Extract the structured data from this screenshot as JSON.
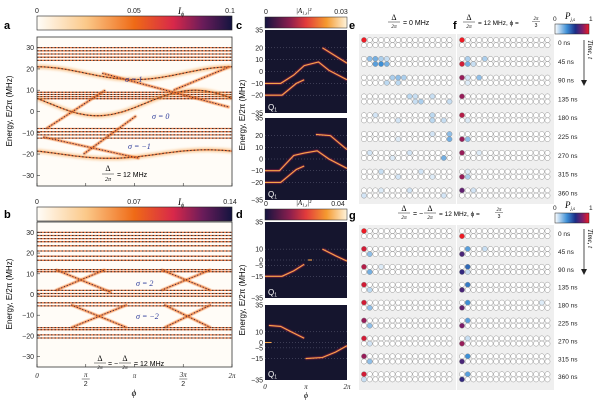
{
  "chart_data": [
    {
      "panel": "a",
      "type": "heatmap",
      "colorbar": {
        "label": "I_φ",
        "ticks": [
          "0",
          "0.05",
          "0.1"
        ],
        "range": [
          0,
          0.1
        ],
        "colormap": "white-orange-red-navy"
      },
      "xlabel": "",
      "ylabel": "Energy, E/2π (MHz)",
      "ylim": [
        -35,
        35
      ],
      "xlim": [
        0,
        6.2832
      ],
      "yticks": [
        -30,
        -20,
        -10,
        0,
        10,
        20,
        30
      ],
      "annotations": [
        {
          "text": "σ = 1",
          "x": 4.0,
          "y": 15
        },
        {
          "text": "σ = 0",
          "x": 4.6,
          "y": -1
        },
        {
          "text": "σ = −1",
          "x": 3.9,
          "y": -15
        },
        {
          "text": "Δ/2π = 12 MHz",
          "x": 3.2,
          "y": -28
        }
      ],
      "bands": [
        {
          "kind": "flat",
          "y": [
            30,
            28.5,
            27,
            25.5,
            24
          ]
        },
        {
          "kind": "cos",
          "center": 18,
          "amp": 3,
          "phase": 0
        },
        {
          "kind": "flat",
          "y": [
            9,
            8,
            7,
            6
          ]
        },
        {
          "kind": "cos",
          "center": 4,
          "amp": 6,
          "phase": 1.2
        },
        {
          "kind": "flat",
          "y": [
            -8,
            -9.5,
            -11,
            -12.5
          ]
        },
        {
          "kind": "cos",
          "center": -20,
          "amp": 2,
          "phase": 0.8
        }
      ],
      "crossings": [
        {
          "from": [
            0.3,
            -8
          ],
          "to": [
            2.2,
            10
          ]
        },
        {
          "from": [
            2.1,
            18
          ],
          "to": [
            6.2,
            2
          ]
        },
        {
          "from": [
            4.4,
            10
          ],
          "to": [
            6.2,
            21
          ]
        },
        {
          "from": [
            0.2,
            -12
          ],
          "to": [
            3.3,
            -22
          ]
        },
        {
          "from": [
            1.5,
            -20
          ],
          "to": [
            3.2,
            -2
          ]
        }
      ]
    },
    {
      "panel": "b",
      "type": "heatmap",
      "colorbar": {
        "label": "I_φ",
        "ticks": [
          "0",
          "0.07",
          "0.14"
        ],
        "range": [
          0,
          0.14
        ],
        "colormap": "white-orange-red-navy"
      },
      "xlabel": "φ",
      "ylabel": "Energy, E/2π (MHz)",
      "ylim": [
        -35,
        35
      ],
      "xlim": [
        0,
        6.2832
      ],
      "xticks": [
        "0",
        "π/2",
        "π",
        "3π/2",
        "2π"
      ],
      "yticks": [
        -30,
        -20,
        -10,
        0,
        10,
        20,
        30
      ],
      "annotations": [
        {
          "text": "σ = 2",
          "x": 3.5,
          "y": 6
        },
        {
          "text": "σ = −2",
          "x": 3.5,
          "y": -10
        },
        {
          "text": "Δ/2π = −Δ/2π = 12 MHz",
          "x": 3.0,
          "y": -28
        }
      ],
      "bands": [
        {
          "kind": "flat",
          "y": [
            30,
            28.5,
            27,
            25.5,
            23.5,
            21,
            18.5,
            16.5
          ]
        },
        {
          "kind": "flat",
          "y": [
            12,
            11
          ]
        },
        {
          "kind": "flat",
          "y": [
            2,
            0.5,
            -0.8,
            -4,
            -5.5
          ]
        },
        {
          "kind": "flat",
          "y": [
            -16,
            -17,
            -19.5,
            -21
          ]
        }
      ],
      "crossings": [
        {
          "from": [
            0.6,
            2
          ],
          "to": [
            2.2,
            12
          ]
        },
        {
          "from": [
            0.6,
            12
          ],
          "to": [
            2.4,
            1
          ]
        },
        {
          "from": [
            4.0,
            12
          ],
          "to": [
            5.6,
            2
          ]
        },
        {
          "from": [
            4.0,
            2
          ],
          "to": [
            5.6,
            12
          ]
        },
        {
          "from": [
            1.1,
            -5
          ],
          "to": [
            2.9,
            -16
          ]
        },
        {
          "from": [
            1.1,
            -16
          ],
          "to": [
            2.9,
            -5
          ]
        },
        {
          "from": [
            4.1,
            -5
          ],
          "to": [
            5.6,
            -16
          ]
        },
        {
          "from": [
            4.1,
            -16
          ],
          "to": [
            5.6,
            -5
          ]
        }
      ]
    },
    {
      "panel": "c",
      "type": "heatmap",
      "colorbar": {
        "label": "|A_1,s|²",
        "ticks": [
          "0",
          "0.03"
        ],
        "range": [
          0,
          0.03
        ],
        "colormap": "navy-red-orange-white"
      },
      "ylabel": "Energy, E/2π (MHz)",
      "subplots": [
        {
          "label": "Q1",
          "yticks": [
            35,
            20,
            10,
            0,
            -10,
            -20,
            -35
          ],
          "ylim": [
            -35,
            35
          ],
          "curves": [
            [
              [
                0,
                -10
              ],
              [
                1.2,
                -10
              ],
              [
                2.2,
                -3
              ],
              [
                3.0,
                5
              ],
              [
                4.1,
                8
              ],
              [
                4.9,
                1
              ],
              [
                6.28,
                -7
              ]
            ],
            [
              [
                0,
                -20
              ],
              [
                1.3,
                -20
              ],
              [
                2.4,
                -10
              ],
              [
                3.0,
                -7
              ]
            ],
            [
              [
                4.4,
                20
              ],
              [
                6.28,
                7
              ]
            ]
          ]
        },
        {
          "label": "Q1",
          "yticks": [
            35,
            20,
            10,
            0,
            -10,
            -20,
            -35
          ],
          "ylim": [
            -35,
            35
          ],
          "curves": [
            [
              [
                0,
                -10
              ],
              [
                1.1,
                -10
              ],
              [
                2.2,
                3
              ],
              [
                3.0,
                5
              ],
              [
                4.0,
                7
              ],
              [
                4.9,
                0
              ],
              [
                6.28,
                -8
              ]
            ],
            [
              [
                0,
                -20
              ],
              [
                1.2,
                -20
              ],
              [
                2.4,
                -9
              ],
              [
                3.0,
                -6
              ]
            ],
            [
              [
                3.9,
                21
              ],
              [
                5.0,
                20
              ],
              [
                6.28,
                8
              ]
            ]
          ]
        }
      ]
    },
    {
      "panel": "d",
      "type": "heatmap",
      "colorbar": {
        "label": "|A_1,s|²",
        "ticks": [
          "0",
          "0.04"
        ],
        "range": [
          0,
          0.04
        ],
        "colormap": "navy-red-orange-white"
      },
      "xlabel": "φ",
      "xticks": [
        "0",
        "π",
        "2π"
      ],
      "ylabel": "Energy, E/2π (MHz)",
      "subplots": [
        {
          "label": "Q1",
          "yticks": [
            35,
            10,
            0,
            -5,
            -15,
            -35
          ],
          "ylim": [
            -35,
            35
          ],
          "curves": [
            [
              [
                0,
                -15
              ],
              [
                1.3,
                -15
              ],
              [
                2.2,
                -10
              ],
              [
                3.0,
                -4
              ]
            ],
            [
              [
                3.3,
                0
              ],
              [
                3.6,
                0
              ]
            ],
            [
              [
                4.4,
                10
              ],
              [
                5.4,
                4
              ],
              [
                6.28,
                -1
              ]
            ]
          ]
        },
        {
          "label": "Q1",
          "yticks": [
            35,
            10,
            0,
            -5,
            -15,
            -35
          ],
          "ylim": [
            -35,
            35
          ],
          "curves": [
            [
              [
                0,
                0
              ],
              [
                0.5,
                0
              ]
            ],
            [
              [
                0.3,
                16
              ],
              [
                1.2,
                15
              ],
              [
                2.0,
                10
              ],
              [
                3.0,
                4
              ]
            ],
            [
              [
                3.1,
                -15
              ],
              [
                4.4,
                -14
              ],
              [
                5.4,
                -9
              ],
              [
                6.28,
                -3
              ]
            ]
          ]
        }
      ]
    },
    {
      "panel": "e",
      "type": "table",
      "title": "Δ/2π = 0 MHz",
      "sites_per_leg": 16,
      "times_ns": [
        0,
        45,
        90,
        135,
        180,
        225,
        270,
        315,
        360
      ],
      "snapshots": [
        {
          "t": 0,
          "top": {
            "0": 1.0
          },
          "bot": {}
        },
        {
          "t": 45,
          "top": {
            "1": 0.2,
            "2": 0.25,
            "3": 0.15,
            "4": 0.1
          },
          "bot": {
            "2": 0.3,
            "3": 0.35,
            "4": 0.25
          }
        },
        {
          "t": 90,
          "top": {
            "5": 0.15,
            "6": 0.2,
            "7": 0.15
          },
          "bot": {
            "4": 0.12,
            "6": 0.12
          }
        },
        {
          "t": 135,
          "top": {
            "8": 0.12,
            "9": 0.1,
            "12": 0.1
          },
          "bot": {
            "9": 0.1,
            "10": 0.15,
            "15": 0.1
          }
        },
        {
          "t": 180,
          "top": {
            "2": 0.08,
            "12": 0.12
          },
          "bot": {
            "6": 0.08,
            "12": 0.12,
            "14": 0.1
          }
        },
        {
          "t": 225,
          "top": {
            "15": 0.2,
            "12": 0.08
          },
          "bot": {
            "15": 0.25,
            "6": 0.06
          }
        },
        {
          "t": 270,
          "top": {
            "1": 0.08,
            "8": 0.08
          },
          "bot": {
            "14": 0.25,
            "5": 0.06
          }
        },
        {
          "t": 315,
          "top": {
            "3": 0.1,
            "10": 0.08
          },
          "bot": {
            "6": 0.08,
            "12": 0.06
          }
        },
        {
          "t": 360,
          "top": {
            "3": 0.06,
            "8": 0.08
          },
          "bot": {
            "0": 0.08,
            "14": 0.08
          }
        }
      ]
    },
    {
      "panel": "f",
      "type": "table",
      "title": "Δ/2π = 12 MHz, φ = 2π/3",
      "sites_per_leg": 16,
      "times_ns": [
        0,
        45,
        90,
        135,
        180,
        225,
        270,
        315,
        360
      ],
      "snapshots": [
        {
          "t": 0,
          "top": {
            "0": 1.0
          },
          "bot": {}
        },
        {
          "t": 45,
          "top": {
            "1": 0.15,
            "4": 0.15
          },
          "bot": {
            "0": 0.95,
            "1": 0.25,
            "2": 0.1
          }
        },
        {
          "t": 90,
          "top": {
            "0": 0.85,
            "1": 0.08,
            "3": 0.2
          },
          "bot": {
            "1": 0.06
          }
        },
        {
          "t": 135,
          "top": {
            "0": 0.85
          },
          "bot": {}
        },
        {
          "t": 180,
          "top": {
            "0": 0.9
          },
          "bot": {
            "1": 0.06
          }
        },
        {
          "t": 225,
          "top": {},
          "bot": {
            "0": 0.85,
            "1": 0.2
          }
        },
        {
          "t": 270,
          "top": {
            "0": 0.85,
            "3": 0.06
          },
          "bot": {}
        },
        {
          "t": 315,
          "top": {
            "1": 0.06
          },
          "bot": {
            "0": 0.85,
            "1": 0.15
          }
        },
        {
          "t": 360,
          "top": {
            "0": 0.75,
            "2": 0.08
          },
          "bot": {}
        }
      ]
    },
    {
      "panel": "g",
      "type": "table",
      "title": "Δ/2π = −Δ/2π = 12 MHz, φ = 2π/3",
      "sites_per_leg": 16,
      "times_ns": [
        0,
        45,
        90,
        135,
        180,
        225,
        270,
        315,
        360
      ],
      "left_snapshots": [
        {
          "t": 0,
          "top": {
            "0": 1.0
          },
          "bot": {}
        },
        {
          "t": 45,
          "top": {
            "0": 0.95
          },
          "bot": {
            "1": 0.2
          }
        },
        {
          "t": 90,
          "top": {
            "0": 0.9,
            "3": 0.06
          },
          "bot": {
            "1": 0.25
          }
        },
        {
          "t": 135,
          "top": {
            "0": 0.95
          },
          "bot": {
            "1": 0.12
          }
        },
        {
          "t": 180,
          "top": {
            "0": 0.95
          },
          "bot": {
            "1": 0.2
          }
        },
        {
          "t": 225,
          "top": {
            "0": 0.85
          },
          "bot": {
            "1": 0.2
          }
        },
        {
          "t": 270,
          "top": {
            "0": 0.95
          },
          "bot": {
            "1": 0.08
          }
        },
        {
          "t": 315,
          "top": {
            "0": 0.85
          },
          "bot": {
            "1": 0.2
          }
        },
        {
          "t": 360,
          "top": {
            "0": 0.95
          },
          "bot": {
            "0": 0.1
          }
        }
      ],
      "right_snapshots": [
        {
          "t": 0,
          "top": {},
          "bot": {
            "0": 1.0
          }
        },
        {
          "t": 45,
          "top": {
            "1": 0.3,
            "4": 0.1
          },
          "bot": {
            "0": 0.7
          }
        },
        {
          "t": 90,
          "top": {
            "1": 0.45
          },
          "bot": {
            "0": 0.65,
            "1": 0.1
          }
        },
        {
          "t": 135,
          "top": {
            "1": 0.4
          },
          "bot": {
            "0": 0.7
          }
        },
        {
          "t": 180,
          "top": {
            "1": 0.35,
            "14": 0.06
          },
          "bot": {
            "0": 0.75
          }
        },
        {
          "t": 225,
          "top": {
            "1": 0.3
          },
          "bot": {
            "0": 0.8
          }
        },
        {
          "t": 270,
          "top": {
            "1": 0.1
          },
          "bot": {
            "0": 0.85
          }
        },
        {
          "t": 315,
          "top": {
            "1": 0.35
          },
          "bot": {
            "0": 0.7
          }
        },
        {
          "t": 360,
          "top": {
            "1": 0.3
          },
          "bot": {
            "0": 0.65
          }
        }
      ]
    }
  ],
  "labels": {
    "panel_a": "a",
    "panel_b": "b",
    "panel_c": "c",
    "panel_d": "d",
    "panel_e": "e",
    "panel_f": "f",
    "panel_g": "g",
    "cbar_a_label": "I",
    "cbar_a_sub": "ϕ",
    "cbar_b_label": "I",
    "cbar_b_sub": "ϕ",
    "cbar_cd_label": "|A",
    "cbar_cd_sub": "1,s",
    "cbar_cd_sup": "|²",
    "ylabel_energy": "Energy, E/2π (MHz)",
    "xlabel_phi": "ϕ",
    "q1": "Q",
    "q1_sub": "1",
    "e_title_delta": "Δ",
    "e_title_2pi": "2π",
    "e_title_rest": "= 0 MHz",
    "f_title_rest": "= 12 MHz, ϕ =",
    "f_title_frac_num": "2π",
    "f_title_frac_den": "3",
    "g_title_mid": "= −",
    "g_title_rest": "= 12 MHz,  ϕ =",
    "pjs_label": "P",
    "pjs_sub": "j,s",
    "pjs_min": "0",
    "pjs_max": "1",
    "time_axis": "Time, t",
    "a_delta_text": "= 12 MHz",
    "b_delta_text": "= 12 MHz",
    "sigma_a": [
      "σ = 1",
      "σ = 0",
      "σ = −1"
    ],
    "sigma_b": [
      "σ = 2",
      "σ = −2"
    ]
  },
  "colors": {
    "heat_low": "#fffaf0",
    "heat_mid": "#f07a1a",
    "heat_red": "#d6254a",
    "heat_high": "#1b1a4f",
    "dark_bg": "#15152e",
    "trace": "#f7a54a",
    "annotation_blue": "#2b3a9a",
    "dash": "#555555",
    "lattice_bg": "#efefef",
    "p_zero": "#ffffff",
    "p_low": "#bcd8f0",
    "p_mid": "#2d7dc9",
    "p_high": "#1c2f7a",
    "p_one": "#e8192c"
  }
}
